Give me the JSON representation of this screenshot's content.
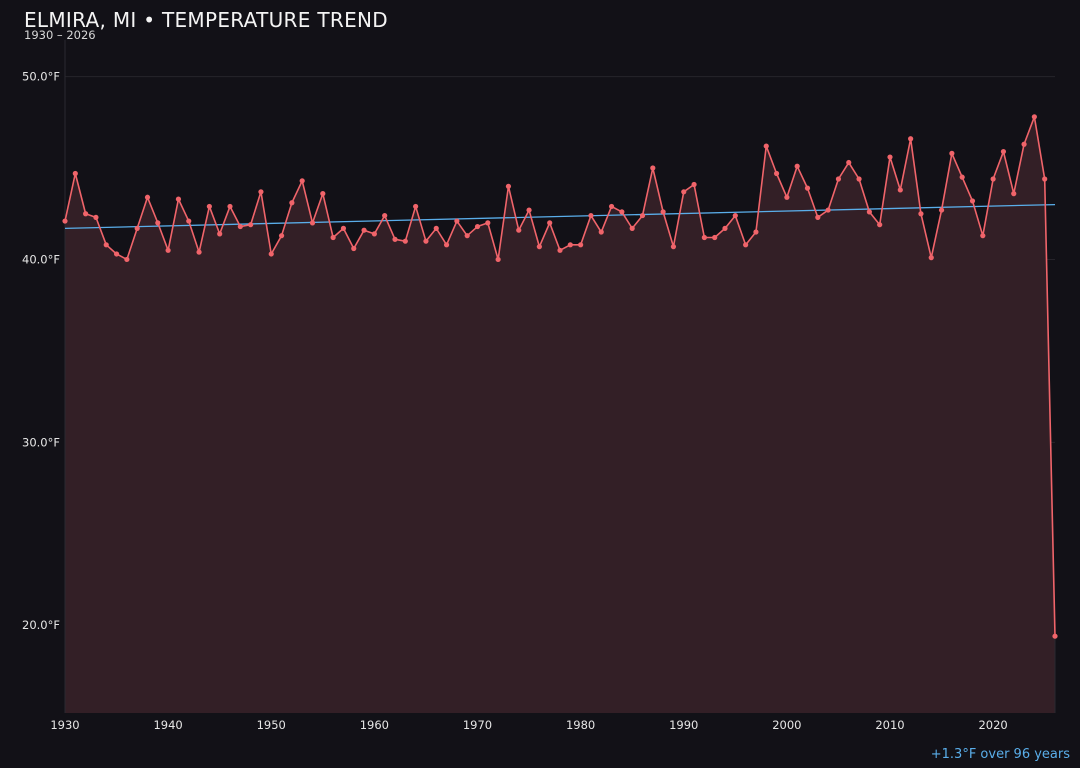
{
  "header": {
    "title": "ELMIRA, MI • TEMPERATURE TREND",
    "subtitle": "1930 – 2026"
  },
  "footnote": "+1.3°F over 96 years",
  "colors": {
    "background": "#121117",
    "series_line": "#f0646a",
    "area_fill": "#331f26",
    "trend_line": "#5aaeea",
    "grid": "#26242b"
  },
  "chart_data": {
    "type": "line",
    "title": "ELMIRA, MI • TEMPERATURE TREND",
    "subtitle": "1930 – 2026",
    "xlabel": "",
    "ylabel": "",
    "xlim": [
      1930,
      2026
    ],
    "ylim": [
      15.2,
      52.0
    ],
    "grid": true,
    "area_fill": true,
    "x_ticks": [
      1930,
      1940,
      1950,
      1960,
      1970,
      1980,
      1990,
      2000,
      2010,
      2020
    ],
    "x_tick_labels": [
      "1930",
      "1940",
      "1950",
      "1960",
      "1970",
      "1980",
      "1990",
      "2000",
      "2010",
      "2020"
    ],
    "y_ticks": [
      20,
      30,
      40,
      50
    ],
    "y_tick_labels": [
      "20.0°F",
      "30.0°F",
      "40.0°F",
      "50.0°F"
    ],
    "x": [
      1930,
      1931,
      1932,
      1933,
      1934,
      1935,
      1936,
      1937,
      1938,
      1939,
      1940,
      1941,
      1942,
      1943,
      1944,
      1945,
      1946,
      1947,
      1948,
      1949,
      1950,
      1951,
      1952,
      1953,
      1954,
      1955,
      1956,
      1957,
      1958,
      1959,
      1960,
      1961,
      1962,
      1963,
      1964,
      1965,
      1966,
      1967,
      1968,
      1969,
      1970,
      1971,
      1972,
      1973,
      1974,
      1975,
      1976,
      1977,
      1978,
      1979,
      1980,
      1981,
      1982,
      1983,
      1984,
      1985,
      1986,
      1987,
      1988,
      1989,
      1990,
      1991,
      1992,
      1993,
      1994,
      1995,
      1996,
      1997,
      1998,
      1999,
      2000,
      2001,
      2002,
      2003,
      2004,
      2005,
      2006,
      2007,
      2008,
      2009,
      2010,
      2011,
      2012,
      2013,
      2014,
      2015,
      2016,
      2017,
      2018,
      2019,
      2020,
      2021,
      2022,
      2023,
      2024,
      2025,
      2026
    ],
    "series": [
      {
        "values": [
          42.1,
          44.7,
          42.5,
          42.3,
          40.8,
          40.3,
          40.0,
          41.7,
          43.4,
          42.0,
          40.5,
          43.3,
          42.1,
          40.4,
          42.9,
          41.4,
          42.9,
          41.8,
          41.9,
          43.7,
          40.3,
          41.3,
          43.1,
          44.3,
          42.0,
          43.6,
          41.2,
          41.7,
          40.6,
          41.6,
          41.4,
          42.4,
          41.1,
          41.0,
          42.9,
          41.0,
          41.7,
          40.8,
          42.1,
          41.3,
          41.8,
          42.0,
          40.0,
          44.0,
          41.6,
          42.7,
          40.7,
          42.0,
          40.5,
          40.8,
          40.8,
          42.4,
          41.5,
          42.9,
          42.6,
          41.7,
          42.4,
          45.0,
          42.6,
          40.7,
          43.7,
          44.1,
          41.2,
          41.2,
          41.7,
          42.4,
          40.8,
          41.5,
          46.2,
          44.7,
          43.4,
          45.1,
          43.9,
          42.3,
          42.7,
          44.4,
          45.3,
          44.4,
          42.6,
          41.9,
          45.6,
          43.8,
          46.6,
          42.5,
          40.1,
          42.7,
          45.8,
          44.5,
          43.2,
          41.3,
          44.4,
          45.9,
          43.6,
          46.3,
          47.8,
          44.4,
          19.4
        ]
      }
    ],
    "trend": {
      "start": [
        1930,
        41.7
      ],
      "end": [
        2026,
        43.0
      ]
    }
  }
}
